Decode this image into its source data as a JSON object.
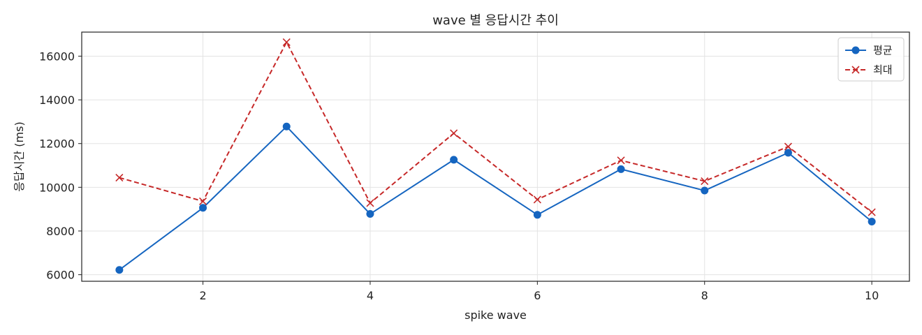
{
  "chart_data": {
    "type": "line",
    "title": "wave 별 응답시간 추이",
    "xlabel": "spike wave",
    "ylabel": "응답시간 (ms)",
    "x": [
      1,
      2,
      3,
      4,
      5,
      6,
      7,
      8,
      9,
      10
    ],
    "xlim": [
      0.55,
      10.45
    ],
    "ylim": [
      5700,
      17100
    ],
    "xticks": [
      2,
      4,
      6,
      8,
      10
    ],
    "yticks": [
      6000,
      8000,
      10000,
      12000,
      14000,
      16000
    ],
    "grid": true,
    "legend_position": "top-right",
    "series": [
      {
        "name": "평균",
        "color": "#1565c0",
        "line_style": "solid",
        "marker": "circle",
        "values": [
          6220,
          9060,
          12780,
          8780,
          11260,
          8740,
          10830,
          9850,
          11580,
          8430
        ]
      },
      {
        "name": "최대",
        "color": "#c62828",
        "line_style": "dashed",
        "marker": "x",
        "values": [
          10440,
          9360,
          16640,
          9280,
          12470,
          9440,
          11230,
          10280,
          11860,
          8860
        ]
      }
    ]
  }
}
